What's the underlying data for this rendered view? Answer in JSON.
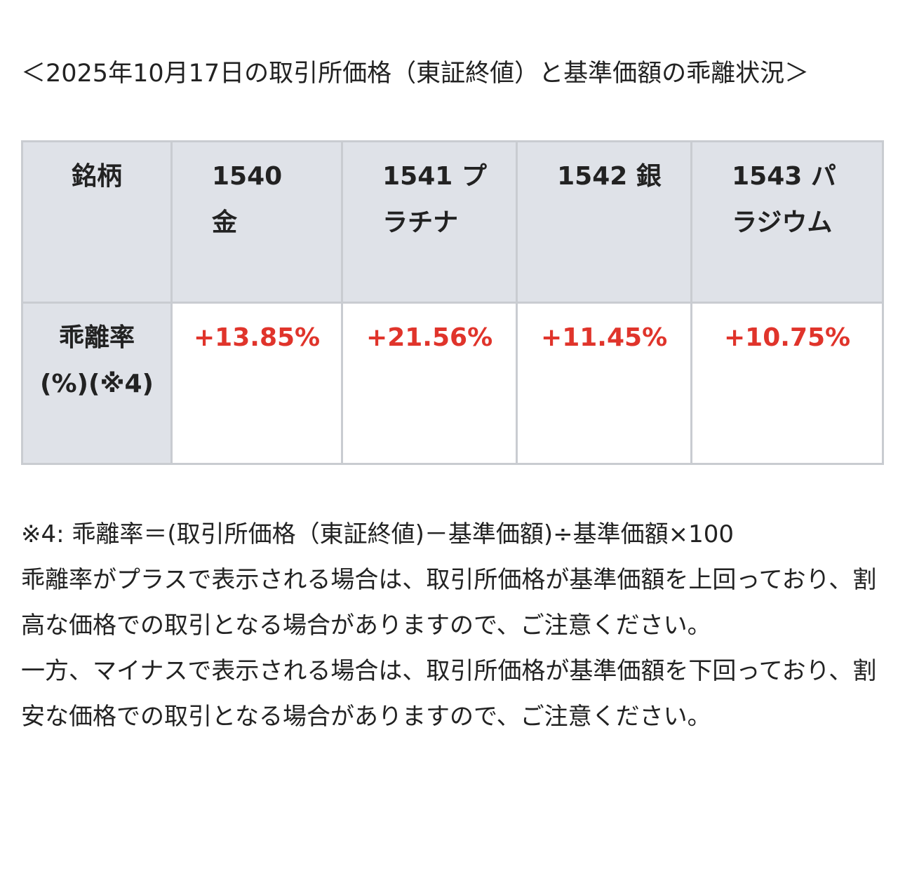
{
  "title": "＜2025年10月17日の取引所価格（東証終値）と基準価額の乖離状況＞",
  "table": {
    "header": [
      "銘柄",
      "1540 金",
      "1541 プラチナ",
      "1542 銀",
      "1543 パラジウム"
    ],
    "row": {
      "label": "乖離率(%)(※4)",
      "values": [
        "+13.85%",
        "+21.56%",
        "+11.45%",
        "+10.75%"
      ]
    },
    "value_color": "#e0342b"
  },
  "notes": [
    "※4: 乖離率＝(取引所価格（東証終値)－基準価額)÷基準価額×100",
    "乖離率がプラスで表示される場合は、取引所価格が基準価額を上回っており、割高な価格での取引となる場合がありますので、ご注意ください。",
    "一方、マイナスで表示される場合は、取引所価格が基準価額を下回っており、割安な価格での取引となる場合がありますので、ご注意ください。"
  ]
}
